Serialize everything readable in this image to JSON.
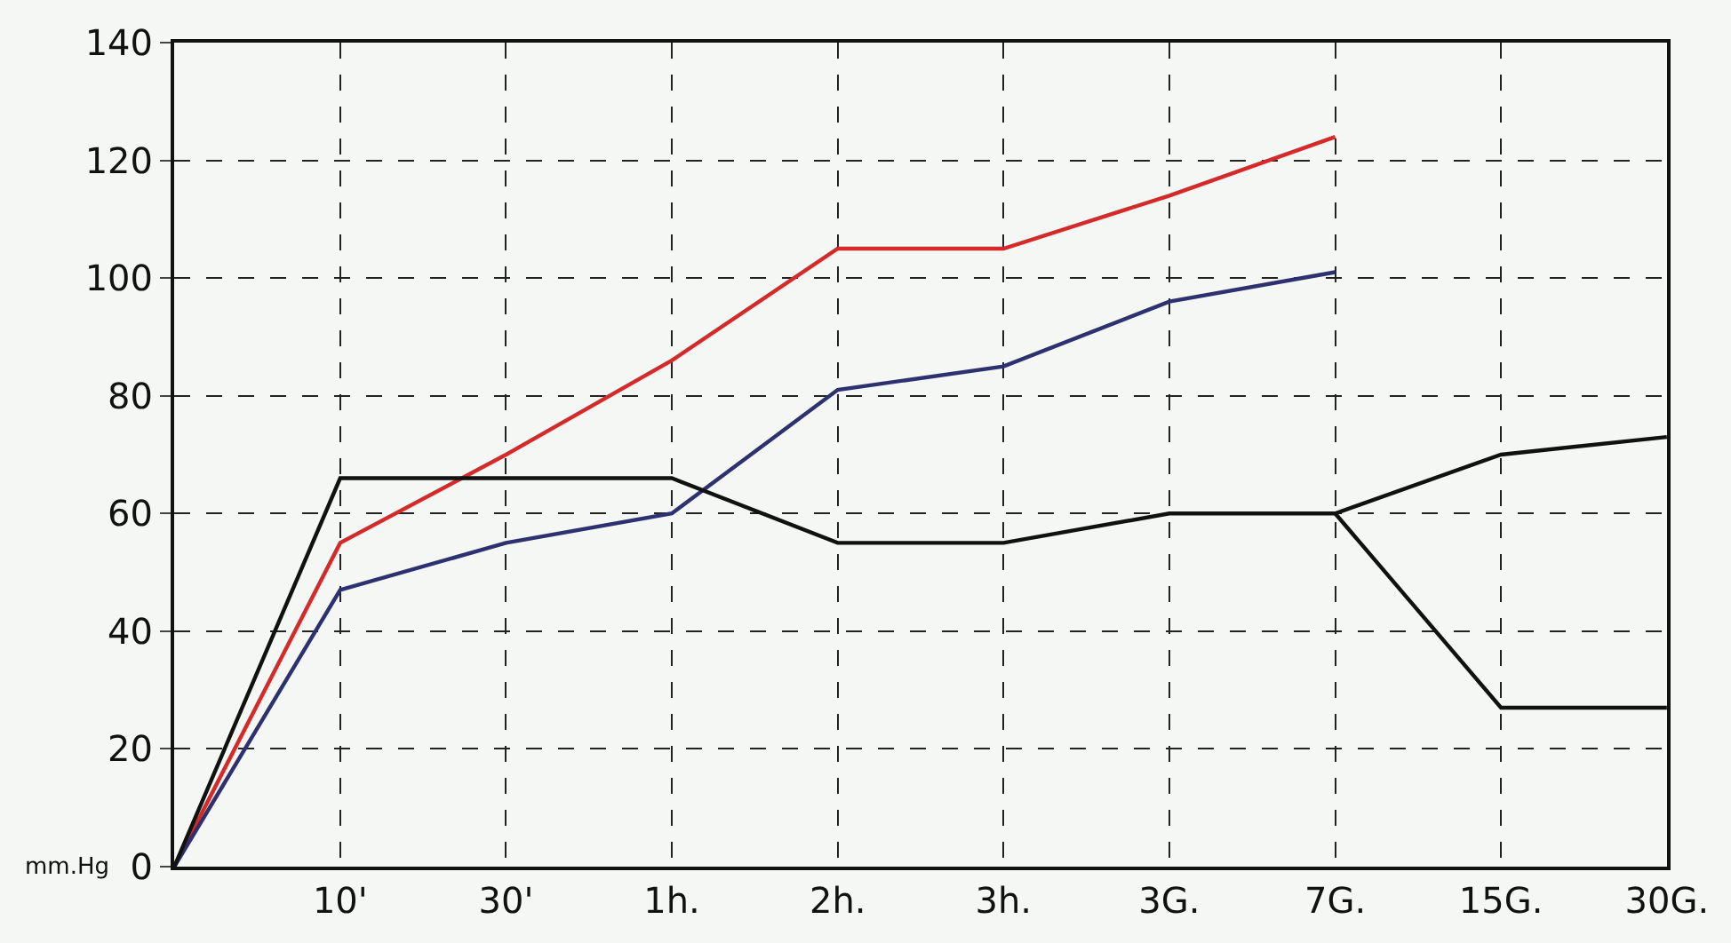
{
  "chart_data": {
    "type": "line",
    "ylabel": "mm.Hg",
    "categories": [
      null,
      "10'",
      "30'",
      "1h.",
      "2h.",
      "3h.",
      "3G.",
      "7G.",
      "15G.",
      "30G."
    ],
    "series": [
      {
        "color": "#d42a2a",
        "values": [
          0,
          55,
          70,
          86,
          105,
          105,
          114,
          124,
          null,
          null
        ]
      },
      {
        "color": "#2e3170",
        "values": [
          0,
          47,
          55,
          60,
          81,
          85,
          96,
          101,
          null,
          null
        ]
      },
      {
        "color": "#111111",
        "values": [
          0,
          66,
          66,
          66,
          55,
          55,
          60,
          60,
          70,
          73
        ]
      },
      {
        "color": "#111111",
        "values": [
          null,
          null,
          null,
          null,
          null,
          null,
          null,
          60,
          27,
          27
        ]
      }
    ],
    "ylim": [
      0,
      140
    ],
    "yticks": [
      0,
      20,
      40,
      60,
      80,
      100,
      120,
      140
    ],
    "grid": true,
    "marker": "none",
    "line_style": "solid"
  }
}
